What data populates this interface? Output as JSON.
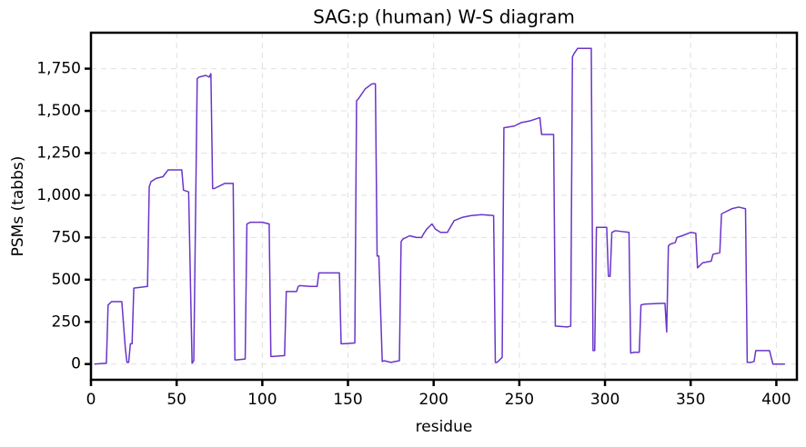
{
  "chart_data": {
    "type": "line",
    "title": "SAG:p (human) W-S diagram",
    "x_label": "residue",
    "y_label": "PSMs (tabbs)",
    "x": [
      2,
      9,
      10,
      12,
      18,
      20,
      21,
      22,
      23,
      24,
      25,
      33,
      34,
      35,
      38,
      42,
      45,
      48,
      53,
      54,
      57,
      59,
      60,
      62,
      63,
      67,
      69,
      70,
      71,
      72,
      78,
      83,
      84,
      85,
      90,
      91,
      93,
      100,
      104,
      105,
      106,
      113,
      114,
      120,
      121,
      122,
      128,
      132,
      133,
      134,
      145,
      146,
      147,
      154,
      155,
      156,
      160,
      164,
      166,
      167,
      168,
      170,
      171,
      175,
      180,
      181,
      182,
      186,
      190,
      193,
      194,
      196,
      199,
      201,
      204,
      208,
      212,
      217,
      222,
      228,
      235,
      236,
      237,
      240,
      241,
      247,
      251,
      256,
      262,
      263,
      270,
      271,
      278,
      280,
      281,
      282,
      284,
      292,
      293,
      294,
      295,
      301,
      302,
      303,
      304,
      306,
      314,
      315,
      317,
      320,
      321,
      323,
      333,
      335,
      336,
      337,
      338,
      341,
      342,
      345,
      350,
      353,
      354,
      357,
      362,
      363,
      367,
      368,
      370,
      374,
      378,
      382,
      383,
      385,
      387,
      388,
      396,
      398,
      405
    ],
    "values": [
      0,
      5,
      350,
      370,
      370,
      100,
      10,
      10,
      120,
      120,
      450,
      460,
      1050,
      1080,
      1100,
      1110,
      1150,
      1150,
      1150,
      1030,
      1020,
      5,
      20,
      1690,
      1700,
      1710,
      1700,
      1720,
      1040,
      1040,
      1070,
      1070,
      25,
      25,
      30,
      830,
      840,
      840,
      830,
      45,
      45,
      50,
      430,
      430,
      460,
      465,
      460,
      460,
      540,
      540,
      540,
      120,
      120,
      125,
      1560,
      1570,
      1630,
      1660,
      1660,
      640,
      640,
      15,
      20,
      10,
      20,
      725,
      740,
      760,
      750,
      750,
      770,
      800,
      830,
      800,
      780,
      780,
      850,
      870,
      880,
      885,
      880,
      10,
      10,
      40,
      1400,
      1410,
      1430,
      1440,
      1460,
      1360,
      1360,
      225,
      220,
      225,
      1820,
      1840,
      1870,
      1870,
      80,
      80,
      810,
      810,
      520,
      520,
      780,
      790,
      780,
      65,
      70,
      70,
      350,
      355,
      360,
      360,
      190,
      700,
      710,
      720,
      750,
      760,
      780,
      775,
      570,
      600,
      610,
      650,
      660,
      890,
      900,
      920,
      930,
      920,
      10,
      10,
      15,
      80,
      80,
      0,
      0
    ],
    "color": "#6a35c8",
    "xlim": [
      0,
      412
    ],
    "xticks": [
      0,
      50,
      100,
      150,
      200,
      250,
      300,
      350,
      400
    ],
    "ylim": [
      -93,
      1963
    ],
    "yticks": [
      0,
      250,
      500,
      750,
      {
        "value": 1000,
        "label": "1,000"
      },
      {
        "value": 1250,
        "label": "1,250"
      },
      {
        "value": 1500,
        "label": "1,500"
      },
      {
        "value": 1750,
        "label": "1,750"
      }
    ],
    "grid": true
  }
}
